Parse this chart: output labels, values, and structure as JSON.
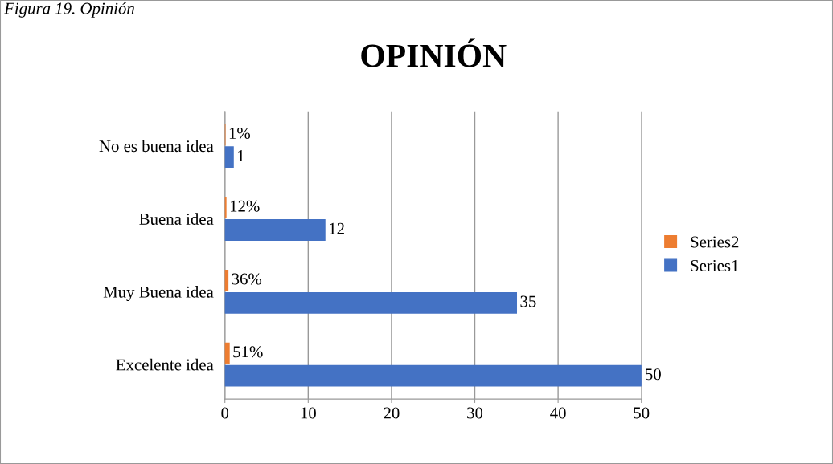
{
  "chart_data": {
    "type": "bar",
    "orientation": "horizontal",
    "title": "OPINIÓN",
    "annotations": [
      "Figura 19. Opinión"
    ],
    "categories": [
      "No es buena idea",
      "Buena idea",
      "Muy Buena idea",
      "Excelente idea"
    ],
    "series": [
      {
        "name": "Series1",
        "color": "#4472c4",
        "values": [
          1,
          12,
          35,
          50
        ],
        "value_labels": [
          "1",
          "12",
          "35",
          "50"
        ]
      },
      {
        "name": "Series2",
        "color": "#ed7d31",
        "values": [
          0.01,
          0.12,
          0.36,
          0.51
        ],
        "value_labels": [
          "1%",
          "12%",
          "36%",
          "51%"
        ]
      }
    ],
    "xlim": [
      0,
      50
    ],
    "xticks": [
      0,
      10,
      20,
      30,
      40,
      50
    ],
    "grid": "x",
    "legend": "right"
  }
}
